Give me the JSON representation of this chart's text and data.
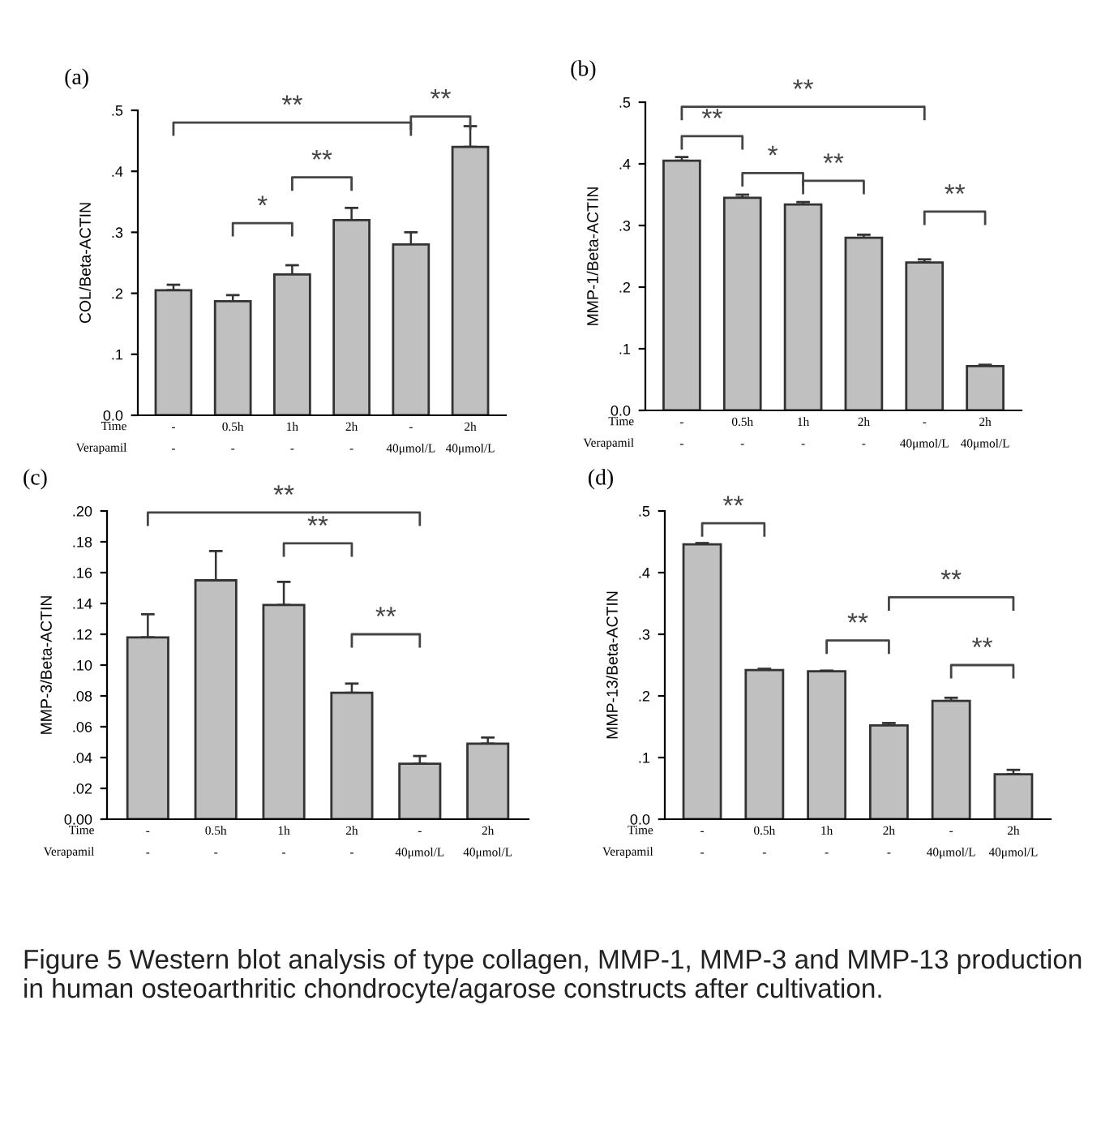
{
  "chart_data": [
    {
      "type": "bar",
      "title": "(a)",
      "ylabel": "COL/Beta-ACTIN",
      "xlabel": "Time\nVerapamil",
      "categories": [
        "-\n-",
        "0.5h\n-",
        "1h\n-",
        "2h\n-",
        "-\n40μmol/L",
        "2h\n40μmol/L"
      ],
      "color": "#c0c0c0",
      "values": [
        0.205,
        0.187,
        0.231,
        0.32,
        0.28,
        0.44
      ],
      "errors": [
        [
          0.205,
          0.214
        ],
        [
          0.187,
          0.197
        ],
        [
          0.231,
          0.246
        ],
        [
          0.32,
          0.34
        ],
        [
          0.28,
          0.3
        ],
        [
          0.44,
          0.474
        ]
      ],
      "ylim": [
        0,
        0.5
      ],
      "yticks": [
        {
          "value": 0,
          "label": "0.0"
        },
        {
          "value": 0.1,
          "label": ".1"
        },
        {
          "value": 0.2,
          "label": ".2"
        },
        {
          "value": 0.3,
          "label": ".3"
        },
        {
          "value": 0.4,
          "label": ".4"
        },
        {
          "value": 0.5,
          "label": ".5"
        }
      ],
      "grid": false,
      "annotations": [
        "**",
        "**",
        "*",
        "**"
      ]
    },
    {
      "type": "bar",
      "title": "(b)",
      "ylabel": "MMP-1/Beta-ACTIN",
      "xlabel": "Time\nVerapamil",
      "categories": [
        "-\n-",
        "0.5h\n-",
        "1h\n-",
        "2h\n-",
        "-\n40μmol/L",
        "2h\n40μmol/L"
      ],
      "color": "#c0c0c0",
      "values": [
        0.405,
        0.345,
        0.334,
        0.28,
        0.24,
        0.072
      ],
      "errors": [
        [
          0.405,
          0.411
        ],
        [
          0.345,
          0.35
        ],
        [
          0.334,
          0.338
        ],
        [
          0.28,
          0.285
        ],
        [
          0.24,
          0.245
        ],
        [
          0.072,
          0.074
        ]
      ],
      "ylim": [
        0,
        0.5
      ],
      "yticks": [
        {
          "value": 0,
          "label": "0.0"
        },
        {
          "value": 0.1,
          "label": ".1"
        },
        {
          "value": 0.2,
          "label": ".2"
        },
        {
          "value": 0.3,
          "label": ".3"
        },
        {
          "value": 0.4,
          "label": ".4"
        },
        {
          "value": 0.5,
          "label": ".5"
        }
      ],
      "grid": false,
      "annotations": [
        "**",
        "**",
        "*",
        "**",
        "**"
      ]
    },
    {
      "type": "bar",
      "title": "(c)",
      "ylabel": "MMP-3/Beta-ACTIN",
      "xlabel": "Time\nVerapamil",
      "categories": [
        "-\n-",
        "0.5h\n-",
        "1h\n-",
        "2h\n-",
        "-\n40μmol/L",
        "2h\n40μmol/L"
      ],
      "color": "#c0c0c0",
      "values": [
        0.118,
        0.155,
        0.139,
        0.082,
        0.036,
        0.049
      ],
      "errors": [
        [
          0.118,
          0.133
        ],
        [
          0.155,
          0.174
        ],
        [
          0.139,
          0.154
        ],
        [
          0.082,
          0.088
        ],
        [
          0.036,
          0.041
        ],
        [
          0.049,
          0.053
        ]
      ],
      "ylim": [
        0,
        0.2
      ],
      "yticks": [
        {
          "value": 0,
          "label": "0.00"
        },
        {
          "value": 0.02,
          "label": ".02"
        },
        {
          "value": 0.04,
          "label": ".04"
        },
        {
          "value": 0.06,
          "label": ".06"
        },
        {
          "value": 0.08,
          "label": ".08"
        },
        {
          "value": 0.1,
          "label": ".10"
        },
        {
          "value": 0.12,
          "label": ".12"
        },
        {
          "value": 0.14,
          "label": ".14"
        },
        {
          "value": 0.16,
          "label": ".16"
        },
        {
          "value": 0.18,
          "label": ".18"
        },
        {
          "value": 0.2,
          "label": ".20"
        }
      ],
      "grid": false,
      "annotations": [
        "**",
        "**",
        "**"
      ]
    },
    {
      "type": "bar",
      "title": "(d)",
      "ylabel": "MMP-13/Beta-ACTIN",
      "xlabel": "Time\nVerapamil",
      "categories": [
        "-\n-",
        "0.5h\n-",
        "1h\n-",
        "2h\n-",
        "-\n40μmol/L",
        "2h\n40μmol/L"
      ],
      "color": "#c0c0c0",
      "values": [
        0.446,
        0.242,
        0.24,
        0.152,
        0.192,
        0.073
      ],
      "errors": [
        [
          0.446,
          0.448
        ],
        [
          0.242,
          0.244
        ],
        [
          0.24,
          0.241
        ],
        [
          0.152,
          0.156
        ],
        [
          0.192,
          0.197
        ],
        [
          0.073,
          0.08
        ]
      ],
      "ylim": [
        0,
        0.5
      ],
      "yticks": [
        {
          "value": 0,
          "label": "0.0"
        },
        {
          "value": 0.1,
          "label": ".1"
        },
        {
          "value": 0.2,
          "label": ".2"
        },
        {
          "value": 0.3,
          "label": ".3"
        },
        {
          "value": 0.4,
          "label": ".4"
        },
        {
          "value": 0.5,
          "label": ".5"
        }
      ],
      "grid": false,
      "annotations": [
        "**",
        "**",
        "**",
        "**",
        "Figure 5 Western blot analysis of type collagen, MMP-1, MMP-3 and MMP-13 production in human osteoarthritic chondrocyte/agarose constructs after cultivation."
      ]
    }
  ]
}
